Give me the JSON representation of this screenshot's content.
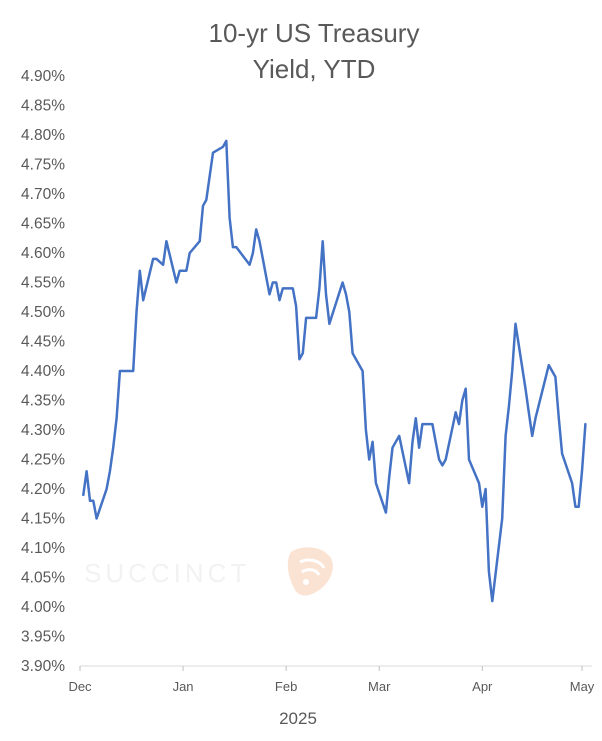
{
  "watermark": {
    "text": "SUCCINCT"
  },
  "chart_data": {
    "type": "line",
    "title": [
      "10-yr US Treasury",
      "Yield, YTD"
    ],
    "xlabel": "2025",
    "ylabel": "",
    "ylim": [
      3.9,
      4.9
    ],
    "yticks": [
      "4.90%",
      "4.85%",
      "4.80%",
      "4.75%",
      "4.70%",
      "4.65%",
      "4.60%",
      "4.55%",
      "4.50%",
      "4.45%",
      "4.40%",
      "4.35%",
      "4.30%",
      "4.25%",
      "4.20%",
      "4.15%",
      "4.10%",
      "4.05%",
      "4.00%",
      "3.95%",
      "3.90%"
    ],
    "xticks": [
      {
        "label": "Dec",
        "date": "2024-12-01"
      },
      {
        "label": "Jan",
        "date": "2025-01-01"
      },
      {
        "label": "Feb",
        "date": "2025-02-01"
      },
      {
        "label": "Mar",
        "date": "2025-03-01"
      },
      {
        "label": "Apr",
        "date": "2025-04-01"
      },
      {
        "label": "May",
        "date": "2025-05-01"
      }
    ],
    "xlim": [
      "2024-12-01",
      "2025-05-04"
    ],
    "grid": false,
    "line_color": "#4472c4",
    "series": [
      {
        "name": "",
        "x": [
          "2024-12-02",
          "2024-12-03",
          "2024-12-04",
          "2024-12-05",
          "2024-12-06",
          "2024-12-09",
          "2024-12-10",
          "2024-12-11",
          "2024-12-12",
          "2024-12-13",
          "2024-12-16",
          "2024-12-17",
          "2024-12-18",
          "2024-12-19",
          "2024-12-20",
          "2024-12-23",
          "2024-12-24",
          "2024-12-26",
          "2024-12-27",
          "2024-12-30",
          "2024-12-31",
          "2025-01-02",
          "2025-01-03",
          "2025-01-06",
          "2025-01-07",
          "2025-01-08",
          "2025-01-10",
          "2025-01-13",
          "2025-01-14",
          "2025-01-15",
          "2025-01-16",
          "2025-01-17",
          "2025-01-21",
          "2025-01-22",
          "2025-01-23",
          "2025-01-24",
          "2025-01-27",
          "2025-01-28",
          "2025-01-29",
          "2025-01-30",
          "2025-01-31",
          "2025-02-03",
          "2025-02-04",
          "2025-02-05",
          "2025-02-06",
          "2025-02-07",
          "2025-02-10",
          "2025-02-11",
          "2025-02-12",
          "2025-02-13",
          "2025-02-14",
          "2025-02-18",
          "2025-02-19",
          "2025-02-20",
          "2025-02-21",
          "2025-02-24",
          "2025-02-25",
          "2025-02-26",
          "2025-02-27",
          "2025-02-28",
          "2025-03-03",
          "2025-03-04",
          "2025-03-05",
          "2025-03-06",
          "2025-03-07",
          "2025-03-10",
          "2025-03-11",
          "2025-03-12",
          "2025-03-13",
          "2025-03-14",
          "2025-03-17",
          "2025-03-18",
          "2025-03-19",
          "2025-03-20",
          "2025-03-21",
          "2025-03-24",
          "2025-03-25",
          "2025-03-26",
          "2025-03-27",
          "2025-03-28",
          "2025-03-31",
          "2025-04-01",
          "2025-04-02",
          "2025-04-03",
          "2025-04-04",
          "2025-04-07",
          "2025-04-08",
          "2025-04-09",
          "2025-04-10",
          "2025-04-11",
          "2025-04-14",
          "2025-04-15",
          "2025-04-16",
          "2025-04-17",
          "2025-04-21",
          "2025-04-22",
          "2025-04-23",
          "2025-04-24",
          "2025-04-25",
          "2025-04-28",
          "2025-04-29",
          "2025-04-30",
          "2025-05-01",
          "2025-05-02"
        ],
        "y": [
          4.19,
          4.23,
          4.18,
          4.18,
          4.15,
          4.2,
          4.23,
          4.27,
          4.32,
          4.4,
          4.4,
          4.4,
          4.5,
          4.57,
          4.52,
          4.59,
          4.59,
          4.58,
          4.62,
          4.55,
          4.57,
          4.57,
          4.6,
          4.62,
          4.68,
          4.69,
          4.77,
          4.78,
          4.79,
          4.66,
          4.61,
          4.61,
          4.58,
          4.6,
          4.64,
          4.62,
          4.53,
          4.55,
          4.55,
          4.52,
          4.54,
          4.54,
          4.51,
          4.42,
          4.43,
          4.49,
          4.49,
          4.54,
          4.62,
          4.53,
          4.48,
          4.55,
          4.53,
          4.5,
          4.43,
          4.4,
          4.3,
          4.25,
          4.28,
          4.21,
          4.16,
          4.22,
          4.27,
          4.28,
          4.29,
          4.21,
          4.28,
          4.32,
          4.27,
          4.31,
          4.31,
          4.28,
          4.25,
          4.24,
          4.25,
          4.33,
          4.31,
          4.35,
          4.37,
          4.25,
          4.21,
          4.17,
          4.2,
          4.06,
          4.01,
          4.15,
          4.29,
          4.34,
          4.4,
          4.48,
          4.37,
          4.33,
          4.29,
          4.32,
          4.41,
          4.4,
          4.39,
          4.32,
          4.26,
          4.21,
          4.17,
          4.17,
          4.23,
          4.31
        ]
      }
    ]
  }
}
